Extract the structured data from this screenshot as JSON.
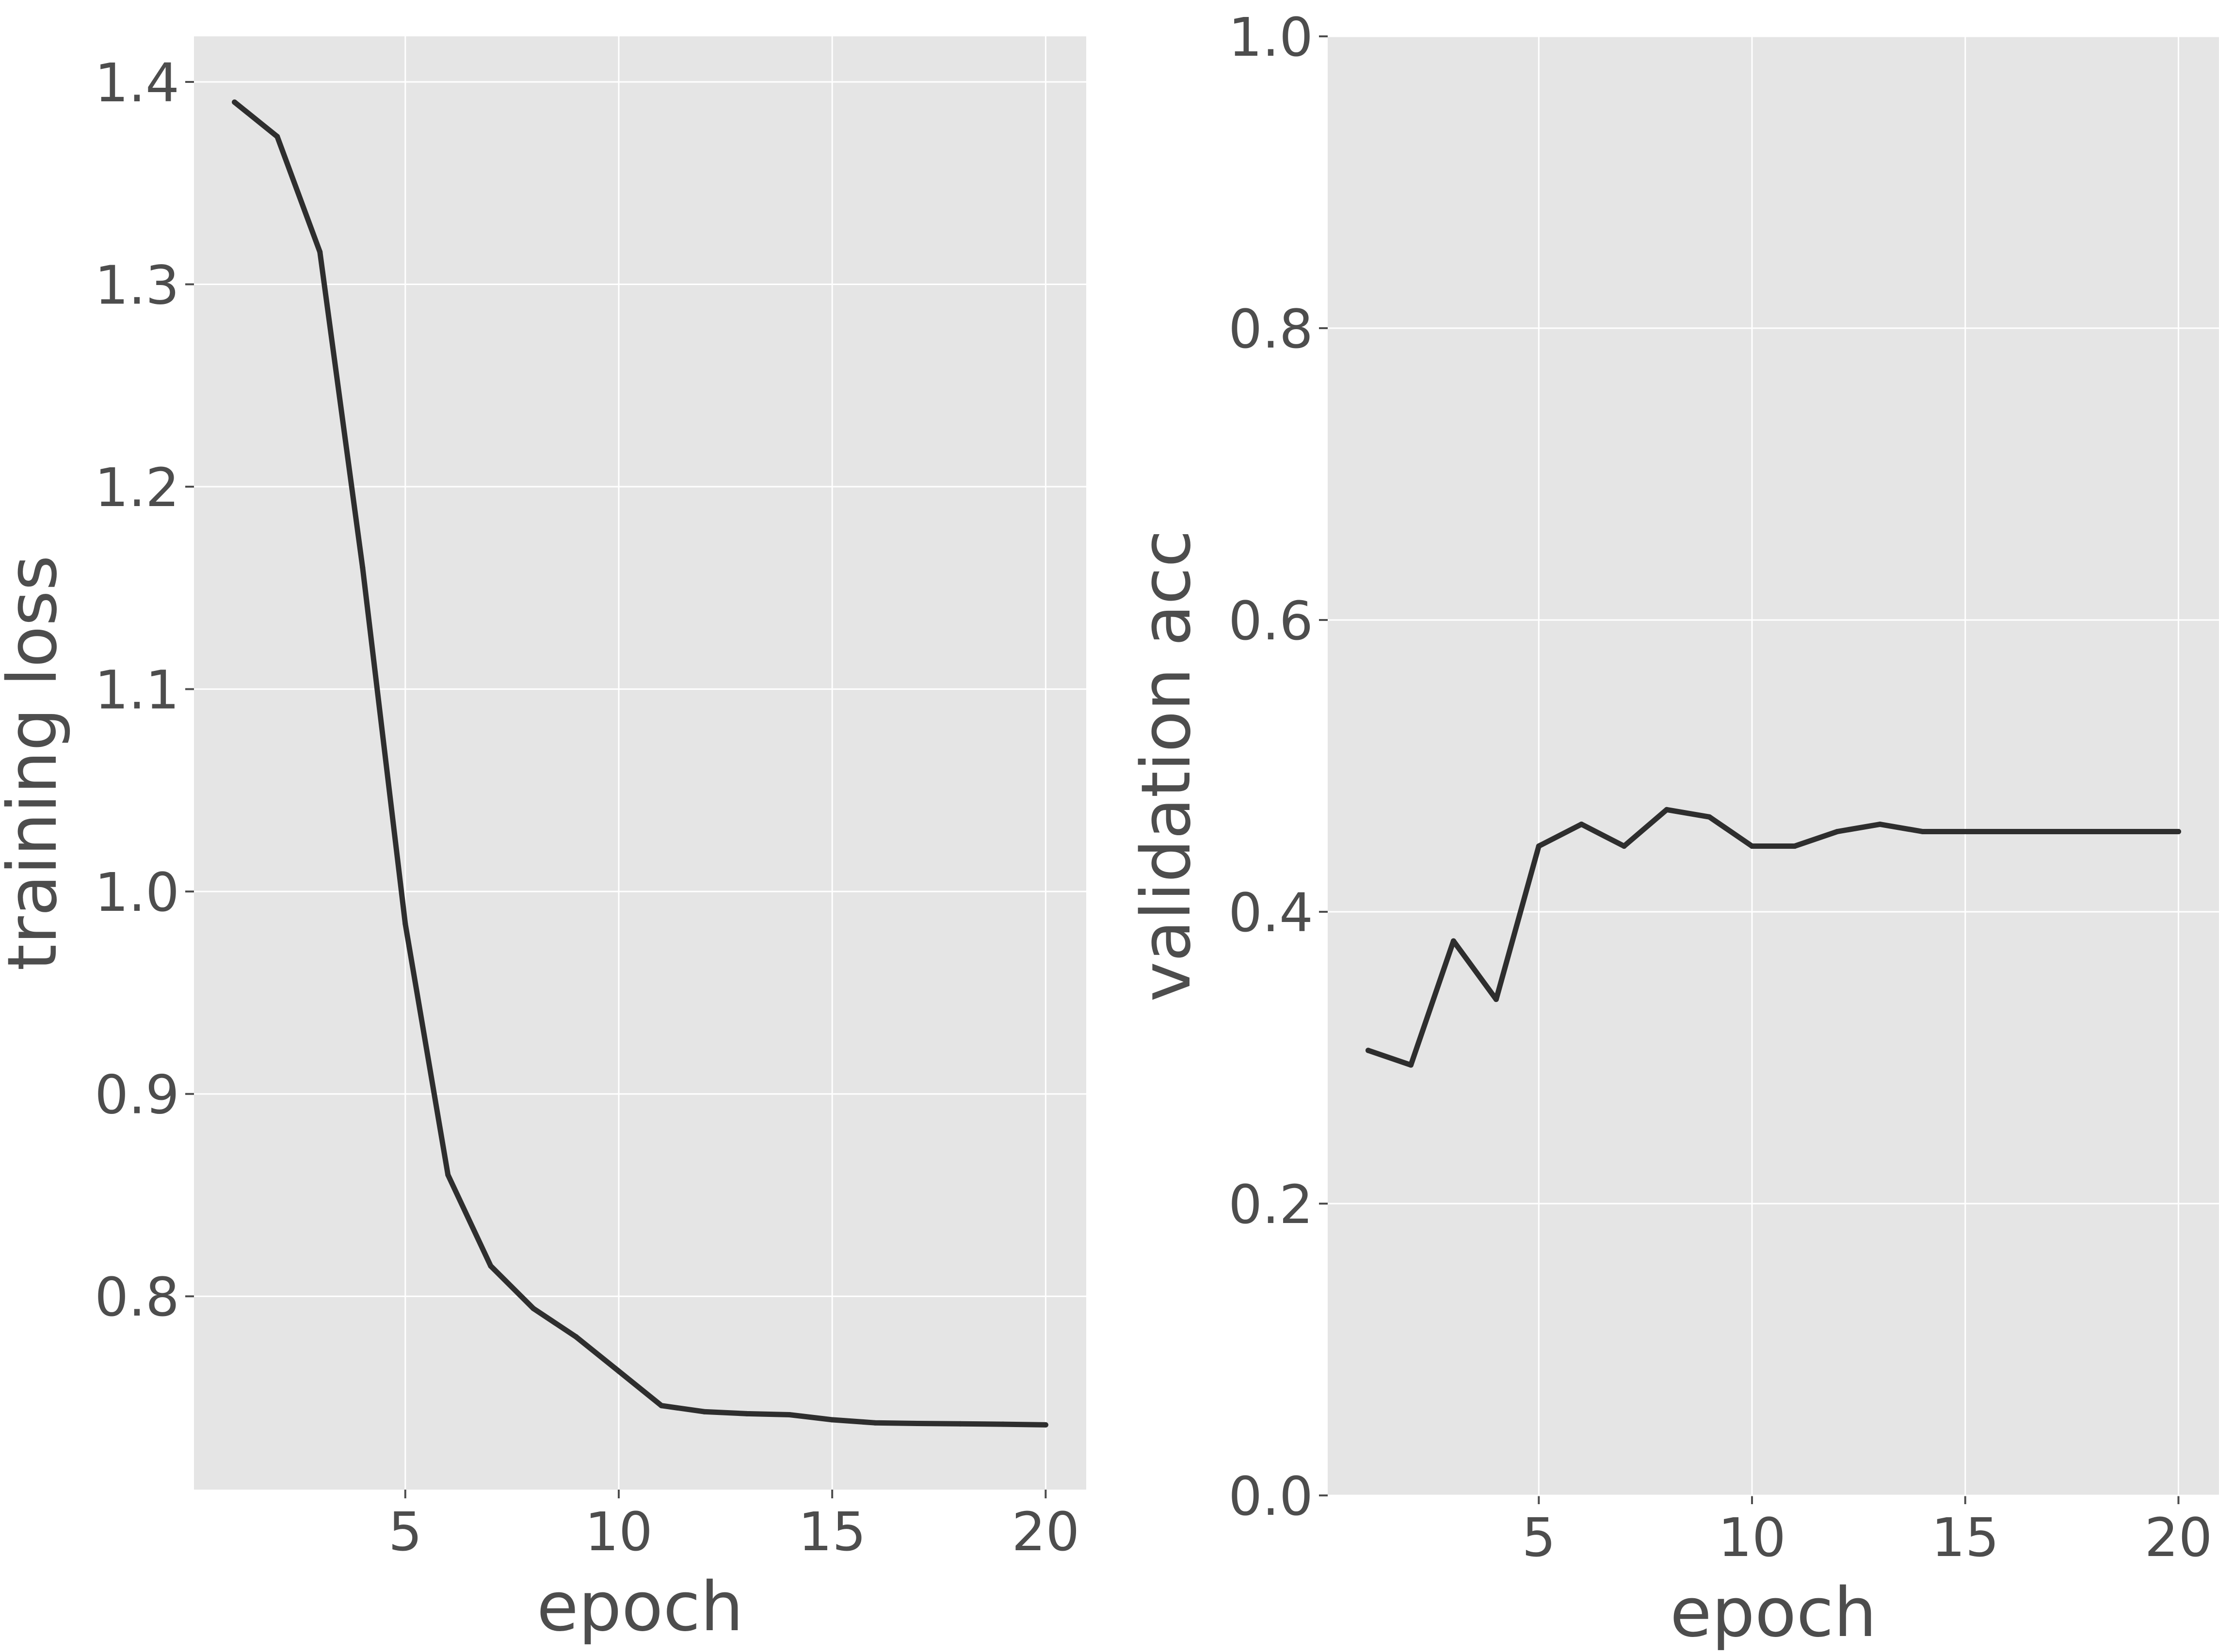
{
  "chart_data": [
    {
      "type": "line",
      "title": "",
      "xlabel": "epoch",
      "ylabel": "training loss",
      "xlim": [
        0.05,
        20.95
      ],
      "ylim": [
        0.7045,
        1.4225
      ],
      "xticks": [
        5,
        10,
        15,
        20
      ],
      "xtick_labels": [
        "5",
        "10",
        "15",
        "20"
      ],
      "yticks": [
        0.8,
        0.9,
        1.0,
        1.1,
        1.2,
        1.3,
        1.4
      ],
      "ytick_labels": [
        "0.8",
        "0.9",
        "1.0",
        "1.1",
        "1.2",
        "1.3",
        "1.4"
      ],
      "grid": true,
      "line_color": "#2e2e2e",
      "panel_color": "#e5e5e5",
      "series": [
        {
          "x": [
            1,
            2,
            3,
            4,
            5,
            6,
            7,
            8,
            9,
            10,
            11,
            12,
            13,
            14,
            15,
            16,
            17,
            18,
            19,
            20
          ],
          "values": [
            1.39,
            1.373,
            1.316,
            1.16,
            0.984,
            0.86,
            0.815,
            0.794,
            0.78,
            0.763,
            0.746,
            0.743,
            0.742,
            0.7415,
            0.739,
            0.7375,
            0.7372,
            0.737,
            0.7368,
            0.7365
          ]
        }
      ]
    },
    {
      "type": "line",
      "title": "",
      "xlabel": "epoch",
      "ylabel": "validation acc",
      "xlim": [
        0.05,
        20.95
      ],
      "ylim": [
        0.0,
        1.0
      ],
      "xticks": [
        5,
        10,
        15,
        20
      ],
      "xtick_labels": [
        "5",
        "10",
        "15",
        "20"
      ],
      "yticks": [
        0.0,
        0.2,
        0.4,
        0.6,
        0.8,
        1.0
      ],
      "ytick_labels": [
        "0.0",
        "0.2",
        "0.4",
        "0.6",
        "0.8",
        "1.0"
      ],
      "grid": true,
      "line_color": "#2e2e2e",
      "panel_color": "#e5e5e5",
      "series": [
        {
          "x": [
            1,
            2,
            3,
            4,
            5,
            6,
            7,
            8,
            9,
            10,
            11,
            12,
            13,
            14,
            15,
            16,
            17,
            18,
            19,
            20
          ],
          "values": [
            0.305,
            0.295,
            0.38,
            0.34,
            0.445,
            0.46,
            0.445,
            0.47,
            0.465,
            0.445,
            0.445,
            0.455,
            0.46,
            0.455,
            0.455,
            0.455,
            0.455,
            0.455,
            0.455,
            0.455
          ]
        }
      ]
    }
  ]
}
